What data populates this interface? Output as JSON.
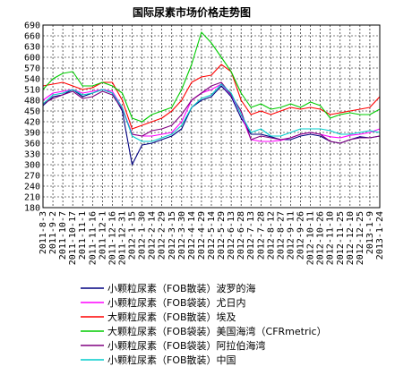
{
  "chart_data": {
    "type": "line",
    "title": "国际尿素市场价格走势图",
    "xlabel": "",
    "ylabel": "",
    "ylim": [
      180,
      690
    ],
    "yticks": [
      180,
      210,
      240,
      270,
      300,
      330,
      360,
      390,
      420,
      450,
      480,
      510,
      540,
      570,
      600,
      630,
      660,
      690
    ],
    "grid": true,
    "legend_position": "bottom",
    "x_tick_labels": [
      "2011-8-3",
      "2011-9-2",
      "2011-10-7",
      "2011-10-17",
      "2011-11-1",
      "2011-11-16",
      "2011-12-1",
      "2011-12-16",
      "2011-12-31",
      "2012-1-15",
      "2012-1-30",
      "2012-2-14",
      "2012-2-29",
      "2012-3-15",
      "2012-3-30",
      "2012-4-14",
      "2012-4-29",
      "2012-5-14",
      "2012-5-29",
      "2012-6-13",
      "2012-6-28",
      "2012-7-13",
      "2012-7-28",
      "2012-8-12",
      "2012-8-27",
      "2012-9-11",
      "2012-9-26",
      "2012-10-11",
      "2012-10-26",
      "2012-11-10",
      "2012-11-25",
      "2012-12-10",
      "2012-12-25",
      "2013-1-9",
      "2013-1-24"
    ],
    "series": [
      {
        "name": "小颗粒尿素（FOB散装）波罗的海",
        "color": "#000080",
        "values": [
          465,
          490,
          495,
          510,
          490,
          500,
          510,
          500,
          450,
          300,
          355,
          360,
          370,
          380,
          400,
          460,
          480,
          490,
          520,
          490,
          430,
          385,
          385,
          378,
          370,
          370,
          380,
          385,
          380,
          365,
          360,
          370,
          378,
          375,
          380
        ]
      },
      {
        "name": "小颗粒尿素（FOB袋装）尤日内",
        "color": "#ff00ff",
        "values": [
          480,
          500,
          505,
          510,
          500,
          505,
          510,
          505,
          460,
          385,
          380,
          380,
          385,
          390,
          420,
          480,
          500,
          510,
          525,
          495,
          440,
          370,
          365,
          365,
          368,
          375,
          385,
          390,
          385,
          378,
          375,
          382,
          385,
          390,
          400
        ]
      },
      {
        "name": "大颗粒尿素（FOB散装）埃及",
        "color": "#ff0000",
        "values": [
          520,
          525,
          530,
          520,
          510,
          515,
          530,
          530,
          480,
          400,
          410,
          420,
          430,
          450,
          480,
          530,
          545,
          550,
          580,
          560,
          480,
          440,
          450,
          440,
          450,
          460,
          455,
          460,
          455,
          440,
          445,
          450,
          455,
          460,
          490
        ]
      },
      {
        "name": "大颗粒尿素（FOB袋装）美国海湾（CFRmetric）",
        "color": "#00cc00",
        "values": [
          510,
          540,
          555,
          560,
          520,
          520,
          530,
          520,
          500,
          430,
          420,
          440,
          450,
          460,
          510,
          580,
          670,
          640,
          600,
          560,
          500,
          460,
          470,
          455,
          460,
          470,
          460,
          475,
          465,
          430,
          440,
          445,
          440,
          440,
          455
        ]
      },
      {
        "name": "小颗粒尿素（FOB袋装）阿拉伯海湾",
        "color": "#800080",
        "values": [
          470,
          485,
          495,
          505,
          485,
          490,
          505,
          495,
          455,
          385,
          380,
          395,
          400,
          410,
          440,
          480,
          500,
          520,
          530,
          495,
          450,
          370,
          380,
          375,
          370,
          375,
          385,
          390,
          385,
          365,
          360,
          370,
          375,
          375,
          380
        ]
      },
      {
        "name": "小颗粒尿素（FOB散装）中国",
        "color": "#00cccc",
        "values": [
          470,
          495,
          500,
          510,
          495,
          500,
          510,
          500,
          460,
          380,
          365,
          365,
          375,
          385,
          410,
          460,
          485,
          495,
          525,
          500,
          440,
          390,
          400,
          380,
          380,
          390,
          400,
          400,
          400,
          395,
          385,
          385,
          390,
          395,
          390
        ]
      }
    ]
  }
}
